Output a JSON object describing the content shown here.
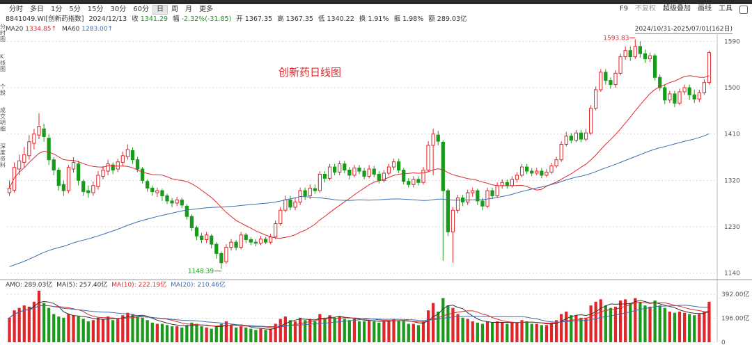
{
  "toolbar": {
    "periods": [
      "分时",
      "多日",
      "1分",
      "5分",
      "15分",
      "30分",
      "60分",
      "日",
      "周",
      "月",
      "更多"
    ],
    "active_period": "日",
    "right_items": [
      "F9",
      "不复权",
      "超级叠加",
      "画线",
      "工具"
    ]
  },
  "quote": {
    "code_name": "8841049.WI[创新药指数]",
    "date": "2024/12/13",
    "close_label": "收",
    "close": "1341.29",
    "change_label": "幅",
    "change": "-2.32%(-31.85)",
    "open_label": "开",
    "open": "1367.35",
    "high_label": "高",
    "high": "1367.35",
    "low_label": "低",
    "low": "1340.22",
    "turnover_label": "换",
    "turnover": "1.91%",
    "amplitude_label": "振",
    "amplitude": "1.98%",
    "amount_label": "额",
    "amount": "289.03亿"
  },
  "ma": {
    "ma20_label": "MA20",
    "ma20": "1334.85↑",
    "ma60_label": "MA60",
    "ma60": "1283.00↑"
  },
  "range": "2024/10/31-2025/07/01(162日)",
  "chart_title": "创新药日线图",
  "sidetabs": [
    "分时图",
    "K线图",
    "个股",
    "成交明细",
    "深度资料"
  ],
  "amo": {
    "amo": "AMO: 289.03亿",
    "ma5": "MA(5): 257.40亿",
    "ma10": "MA(10): 222.19亿",
    "ma20": "MA(20): 210.46亿"
  },
  "colors": {
    "up": "#e0262b",
    "down": "#1a9a1a",
    "ma20": "#e0262b",
    "ma60": "#3a6fb0",
    "grid": "#d9d9d9"
  },
  "chart_data": {
    "type": "candlestick",
    "price_axis_ticks": [
      1590,
      1500,
      1410,
      1320,
      1230,
      1140
    ],
    "price_range": [
      1130,
      1600
    ],
    "volume_axis_ticks": [
      "392.00亿",
      "196.00亿",
      "0"
    ],
    "volume_range": [
      0,
      420
    ],
    "annotations": {
      "max": "1593.83",
      "min": "1148.39"
    },
    "candles": [
      [
        1296,
        1305,
        1320,
        1290,
        200
      ],
      [
        1301,
        1345,
        1355,
        1296,
        260
      ],
      [
        1342,
        1358,
        1370,
        1330,
        280
      ],
      [
        1355,
        1370,
        1385,
        1345,
        300
      ],
      [
        1368,
        1395,
        1408,
        1360,
        290
      ],
      [
        1392,
        1410,
        1420,
        1380,
        330
      ],
      [
        1408,
        1425,
        1450,
        1400,
        420
      ],
      [
        1420,
        1405,
        1430,
        1395,
        320
      ],
      [
        1402,
        1360,
        1410,
        1350,
        280
      ],
      [
        1360,
        1340,
        1365,
        1330,
        230
      ],
      [
        1340,
        1310,
        1345,
        1300,
        210
      ],
      [
        1312,
        1300,
        1320,
        1290,
        200
      ],
      [
        1300,
        1345,
        1350,
        1295,
        230
      ],
      [
        1342,
        1355,
        1365,
        1335,
        220
      ],
      [
        1352,
        1320,
        1358,
        1310,
        210
      ],
      [
        1318,
        1298,
        1322,
        1290,
        190
      ],
      [
        1300,
        1296,
        1310,
        1286,
        170
      ],
      [
        1296,
        1310,
        1318,
        1290,
        180
      ],
      [
        1308,
        1330,
        1338,
        1302,
        200
      ],
      [
        1328,
        1340,
        1348,
        1322,
        190
      ],
      [
        1338,
        1352,
        1360,
        1330,
        210
      ],
      [
        1350,
        1340,
        1355,
        1332,
        180
      ],
      [
        1342,
        1356,
        1362,
        1336,
        190
      ],
      [
        1355,
        1368,
        1376,
        1348,
        220
      ],
      [
        1366,
        1380,
        1390,
        1360,
        240
      ],
      [
        1378,
        1360,
        1384,
        1352,
        230
      ],
      [
        1360,
        1342,
        1366,
        1336,
        210
      ],
      [
        1342,
        1320,
        1346,
        1314,
        200
      ],
      [
        1318,
        1305,
        1322,
        1298,
        180
      ],
      [
        1305,
        1298,
        1310,
        1290,
        160
      ],
      [
        1296,
        1300,
        1306,
        1288,
        150
      ],
      [
        1300,
        1290,
        1304,
        1280,
        150
      ],
      [
        1290,
        1280,
        1294,
        1274,
        140
      ],
      [
        1280,
        1276,
        1286,
        1268,
        130
      ],
      [
        1276,
        1282,
        1288,
        1270,
        130
      ],
      [
        1282,
        1272,
        1286,
        1266,
        120
      ],
      [
        1270,
        1250,
        1274,
        1244,
        140
      ],
      [
        1250,
        1228,
        1254,
        1222,
        160
      ],
      [
        1228,
        1212,
        1232,
        1204,
        150
      ],
      [
        1212,
        1205,
        1218,
        1198,
        130
      ],
      [
        1205,
        1214,
        1220,
        1198,
        120
      ],
      [
        1212,
        1196,
        1216,
        1188,
        110
      ],
      [
        1196,
        1178,
        1200,
        1168,
        130
      ],
      [
        1178,
        1160,
        1182,
        1148,
        150
      ],
      [
        1162,
        1190,
        1196,
        1158,
        170
      ],
      [
        1190,
        1200,
        1206,
        1184,
        140
      ],
      [
        1200,
        1190,
        1204,
        1184,
        120
      ],
      [
        1190,
        1214,
        1220,
        1186,
        130
      ],
      [
        1214,
        1205,
        1218,
        1198,
        120
      ],
      [
        1205,
        1200,
        1210,
        1194,
        110
      ],
      [
        1200,
        1198,
        1206,
        1192,
        100
      ],
      [
        1198,
        1206,
        1212,
        1194,
        110
      ],
      [
        1206,
        1200,
        1210,
        1196,
        100
      ],
      [
        1200,
        1210,
        1216,
        1196,
        110
      ],
      [
        1210,
        1236,
        1242,
        1206,
        150
      ],
      [
        1236,
        1262,
        1268,
        1232,
        190
      ],
      [
        1262,
        1282,
        1290,
        1258,
        210
      ],
      [
        1282,
        1268,
        1290,
        1262,
        180
      ],
      [
        1268,
        1278,
        1286,
        1262,
        170
      ],
      [
        1278,
        1300,
        1306,
        1272,
        200
      ],
      [
        1300,
        1290,
        1306,
        1282,
        180
      ],
      [
        1290,
        1305,
        1312,
        1284,
        190
      ],
      [
        1304,
        1300,
        1312,
        1294,
        170
      ],
      [
        1300,
        1332,
        1338,
        1296,
        230
      ],
      [
        1332,
        1324,
        1338,
        1316,
        200
      ],
      [
        1324,
        1346,
        1352,
        1320,
        220
      ],
      [
        1346,
        1336,
        1352,
        1330,
        200
      ],
      [
        1336,
        1352,
        1358,
        1330,
        210
      ],
      [
        1352,
        1340,
        1358,
        1334,
        190
      ],
      [
        1340,
        1330,
        1346,
        1322,
        180
      ],
      [
        1330,
        1344,
        1350,
        1326,
        190
      ],
      [
        1344,
        1338,
        1350,
        1332,
        170
      ],
      [
        1338,
        1328,
        1344,
        1322,
        170
      ],
      [
        1328,
        1342,
        1350,
        1324,
        180
      ],
      [
        1342,
        1332,
        1348,
        1326,
        170
      ],
      [
        1332,
        1320,
        1338,
        1314,
        160
      ],
      [
        1320,
        1334,
        1340,
        1316,
        170
      ],
      [
        1334,
        1346,
        1352,
        1330,
        180
      ],
      [
        1346,
        1356,
        1362,
        1340,
        190
      ],
      [
        1356,
        1340,
        1362,
        1334,
        180
      ],
      [
        1340,
        1318,
        1344,
        1312,
        170
      ],
      [
        1318,
        1312,
        1324,
        1306,
        150
      ],
      [
        1312,
        1322,
        1328,
        1306,
        150
      ],
      [
        1322,
        1316,
        1328,
        1310,
        140
      ],
      [
        1316,
        1340,
        1346,
        1312,
        170
      ],
      [
        1340,
        1388,
        1396,
        1336,
        260
      ],
      [
        1388,
        1410,
        1420,
        1330,
        320
      ],
      [
        1408,
        1396,
        1416,
        1388,
        250
      ],
      [
        1394,
        1300,
        1398,
        1164,
        360
      ],
      [
        1300,
        1220,
        1304,
        1212,
        300
      ],
      [
        1220,
        1262,
        1268,
        1160,
        280
      ],
      [
        1262,
        1286,
        1292,
        1256,
        230
      ],
      [
        1286,
        1278,
        1292,
        1270,
        200
      ],
      [
        1278,
        1296,
        1302,
        1272,
        190
      ],
      [
        1296,
        1300,
        1306,
        1288,
        170
      ],
      [
        1300,
        1280,
        1304,
        1272,
        160
      ],
      [
        1280,
        1270,
        1286,
        1262,
        150
      ],
      [
        1270,
        1300,
        1306,
        1266,
        170
      ],
      [
        1300,
        1290,
        1306,
        1284,
        160
      ],
      [
        1290,
        1310,
        1316,
        1286,
        170
      ],
      [
        1310,
        1316,
        1322,
        1304,
        160
      ],
      [
        1316,
        1310,
        1322,
        1304,
        150
      ],
      [
        1310,
        1322,
        1328,
        1306,
        160
      ],
      [
        1322,
        1330,
        1336,
        1316,
        160
      ],
      [
        1330,
        1346,
        1352,
        1326,
        180
      ],
      [
        1346,
        1338,
        1352,
        1332,
        170
      ],
      [
        1338,
        1334,
        1344,
        1328,
        150
      ],
      [
        1334,
        1338,
        1344,
        1330,
        150
      ],
      [
        1338,
        1330,
        1344,
        1324,
        140
      ],
      [
        1330,
        1336,
        1342,
        1326,
        140
      ],
      [
        1336,
        1348,
        1354,
        1332,
        160
      ],
      [
        1348,
        1360,
        1366,
        1344,
        180
      ],
      [
        1360,
        1390,
        1396,
        1356,
        230
      ],
      [
        1390,
        1406,
        1414,
        1386,
        250
      ],
      [
        1406,
        1398,
        1412,
        1392,
        220
      ],
      [
        1398,
        1412,
        1418,
        1394,
        220
      ],
      [
        1412,
        1400,
        1418,
        1394,
        200
      ],
      [
        1400,
        1412,
        1420,
        1396,
        200
      ],
      [
        1412,
        1460,
        1466,
        1408,
        300
      ],
      [
        1460,
        1496,
        1502,
        1456,
        330
      ],
      [
        1496,
        1530,
        1536,
        1492,
        350
      ],
      [
        1530,
        1514,
        1536,
        1506,
        300
      ],
      [
        1514,
        1506,
        1520,
        1498,
        280
      ],
      [
        1506,
        1528,
        1534,
        1500,
        290
      ],
      [
        1528,
        1560,
        1566,
        1524,
        340
      ],
      [
        1560,
        1572,
        1580,
        1554,
        350
      ],
      [
        1572,
        1560,
        1580,
        1552,
        320
      ],
      [
        1560,
        1580,
        1594,
        1556,
        360
      ],
      [
        1580,
        1566,
        1590,
        1558,
        330
      ],
      [
        1566,
        1556,
        1574,
        1548,
        300
      ],
      [
        1556,
        1562,
        1568,
        1550,
        290
      ],
      [
        1562,
        1520,
        1566,
        1514,
        340
      ],
      [
        1520,
        1500,
        1526,
        1494,
        300
      ],
      [
        1500,
        1476,
        1506,
        1468,
        280
      ],
      [
        1476,
        1488,
        1494,
        1470,
        250
      ],
      [
        1488,
        1470,
        1494,
        1462,
        240
      ],
      [
        1470,
        1492,
        1498,
        1466,
        250
      ],
      [
        1492,
        1500,
        1506,
        1486,
        240
      ],
      [
        1500,
        1486,
        1506,
        1476,
        230
      ],
      [
        1486,
        1478,
        1496,
        1470,
        220
      ],
      [
        1478,
        1490,
        1496,
        1472,
        230
      ],
      [
        1490,
        1510,
        1516,
        1486,
        250
      ],
      [
        1510,
        1568,
        1572,
        1506,
        330
      ]
    ]
  }
}
